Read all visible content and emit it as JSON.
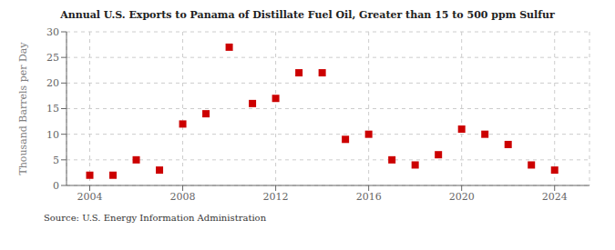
{
  "chart_data": {
    "type": "scatter",
    "title": "Annual U.S. Exports to Panama of Distillate Fuel Oil, Greater than 15 to 500 ppm Sulfur",
    "ylabel": "Thousand Barrels per Day",
    "annotation": "Source: U.S. Energy Information Administration",
    "x": [
      2004,
      2005,
      2006,
      2007,
      2008,
      2009,
      2010,
      2011,
      2012,
      2013,
      2014,
      2015,
      2016,
      2017,
      2018,
      2019,
      2020,
      2021,
      2022,
      2023,
      2024
    ],
    "values": [
      2,
      2,
      5,
      3,
      12,
      14,
      27,
      16,
      17,
      22,
      22,
      9,
      10,
      5,
      4,
      6,
      11,
      10,
      8,
      4,
      3
    ],
    "color": "#cc0000",
    "marker": "square",
    "xlim": [
      2003,
      2025.5
    ],
    "xticks": [
      2004,
      2008,
      2012,
      2016,
      2020,
      2024
    ],
    "ylim": [
      0,
      30
    ],
    "yticks": [
      0,
      5,
      10,
      15,
      20,
      25,
      30
    ],
    "grid": true
  }
}
